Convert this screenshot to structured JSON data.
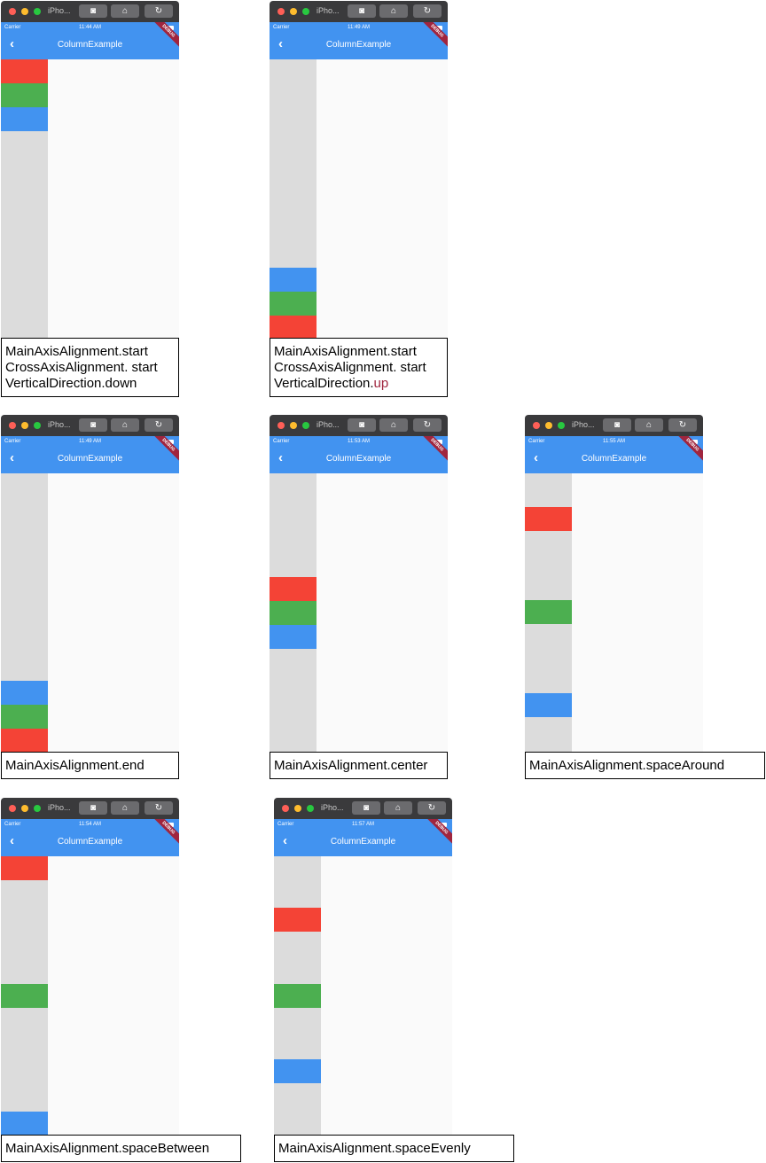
{
  "simulator": {
    "device_label": "iPho...",
    "app_title": "ColumnExample",
    "carrier": "Carrier",
    "debug_banner": "DEBUG",
    "back_icon": "back-chevron-icon"
  },
  "colors": {
    "appbar": "#4293f0",
    "column_bg": "#dcdcdc",
    "red_box": "#f44336",
    "green_box": "#4caf50",
    "blue_box": "#4293f0",
    "highlight": "#a0253e"
  },
  "panels": [
    {
      "time": "11:44 AM",
      "caption": [
        "MainAxisAlignment.start",
        "CrossAxisAlignment. start",
        "VerticalDirection.down"
      ]
    },
    {
      "time": "11:49 AM",
      "caption": [
        "MainAxisAlignment.start",
        "CrossAxisAlignment. start"
      ],
      "caption_last_prefix": "VerticalDirection.",
      "caption_last_highlight": "up"
    },
    {
      "time": "11:49 AM",
      "caption": [
        "MainAxisAlignment.end"
      ]
    },
    {
      "time": "11:53 AM",
      "caption": [
        "MainAxisAlignment.center"
      ]
    },
    {
      "time": "11:55 AM",
      "caption": [
        "MainAxisAlignment.spaceAround"
      ]
    },
    {
      "time": "11:54 AM",
      "caption": [
        "MainAxisAlignment.spaceBetween"
      ]
    },
    {
      "time": "11:57 AM",
      "caption": [
        "MainAxisAlignment.spaceEvenly"
      ]
    }
  ]
}
